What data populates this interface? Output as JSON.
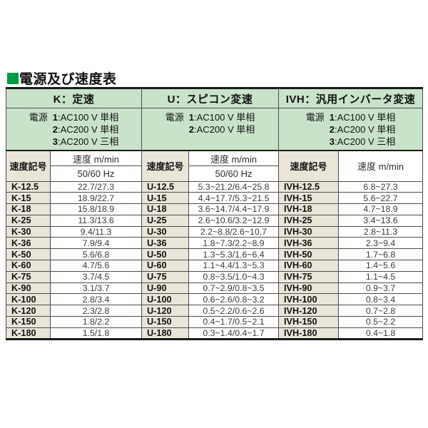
{
  "title": {
    "text": "電源及び速度表"
  },
  "colors": {
    "header_green": "#c9e3cb",
    "code_beige": "#e9e5d8",
    "accent_green": "#009a44",
    "border_dark": "#1a1a1a"
  },
  "table": {
    "sections": [
      {
        "series_label": "K：定速",
        "power_label": "電源",
        "power_options": [
          {
            "n": "1",
            "label": ":AC100 V 単相"
          },
          {
            "n": "2",
            "label": ":AC200 V 単相"
          },
          {
            "n": "3",
            "label": ":AC200 V 三相"
          }
        ],
        "code_header": "速度記号",
        "speed_header": "速度 m/min",
        "speed_subheader": "50/60 Hz"
      },
      {
        "series_label": "U：スピコン変速",
        "power_label": "電源",
        "power_options": [
          {
            "n": "1",
            "label": ":AC100 V 単相"
          },
          {
            "n": "2",
            "label": ":AC200 V 単相"
          }
        ],
        "code_header": "速度記号",
        "speed_header": "速度 m/min",
        "speed_subheader": "50/60 Hz"
      },
      {
        "series_label": "IVH：汎用インバータ変速",
        "power_label": "電源",
        "power_options": [
          {
            "n": "1",
            "label": ":AC100 V 単相"
          },
          {
            "n": "2",
            "label": ":AC200 V 単相"
          },
          {
            "n": "3",
            "label": ":AC200 V 三相"
          }
        ],
        "code_header": "速度記号",
        "speed_header": "速度 m/min"
      }
    ],
    "rows": [
      [
        "K-12.5",
        "22.7/27.3",
        "U-12.5",
        "5.3~21.2/6.4~25.8",
        "IVH-12.5",
        "6.8~27.3"
      ],
      [
        "K-15",
        "18.9/22.7",
        "U-15",
        "4.4~17.7/5.3~21.5",
        "IVH-15",
        "5.6~22.7"
      ],
      [
        "K-18",
        "15.8/18.9",
        "U-18",
        "3.6~14.7/4.4~17.9",
        "IVH-18",
        "4.7~18.9"
      ],
      [
        "K-25",
        "11.3/13.6",
        "U-25",
        "2.6~10.6/3.2~12.9",
        "IVH-25",
        "3.4~13.6"
      ],
      [
        "K-30",
        "9.4/11.3",
        "U-30",
        "2.2~8.8/2.6~10.7",
        "IVH-30",
        "2.8~11.3"
      ],
      [
        "K-36",
        "7.9/9.4",
        "U-36",
        "1.8~7.3/2.2~8.9",
        "IVH-36",
        "2.3~9.4"
      ],
      [
        "K-50",
        "5.6/6.8",
        "U-50",
        "1.3~5.3/1.6~6.4",
        "IVH-50",
        "1.7~6.8"
      ],
      [
        "K-60",
        "4.7/5.6",
        "U-60",
        "1.1~4.4/1.3~5.3",
        "IVH-60",
        "1.4~5.6"
      ],
      [
        "K-75",
        "3.7/4.5",
        "U-75",
        "0.8~3.5/1.0~4.3",
        "IVH-75",
        "1.1~4.5"
      ],
      [
        "K-90",
        "3.1/3.7",
        "U-90",
        "0.7~2.9/0.8~3.5",
        "IVH-90",
        "0.9~3.7"
      ],
      [
        "K-100",
        "2.8/3.4",
        "U-100",
        "0.6~2.6/0.8~3.2",
        "IVH-100",
        "0.8~3.4"
      ],
      [
        "K-120",
        "2.3/2.8",
        "U-120",
        "0.5~2.2/0.6~2.6",
        "IVH-120",
        "0.7~2.8"
      ],
      [
        "K-150",
        "1.8/2.2",
        "U-150",
        "0.4~1.7/0.5~2.1",
        "IVH-150",
        "0.5~2.2"
      ],
      [
        "K-180",
        "1.5/1.8",
        "U-180",
        "0.3~1.4/0.4~1.7",
        "IVH-180",
        "0.4~1.8"
      ]
    ]
  }
}
